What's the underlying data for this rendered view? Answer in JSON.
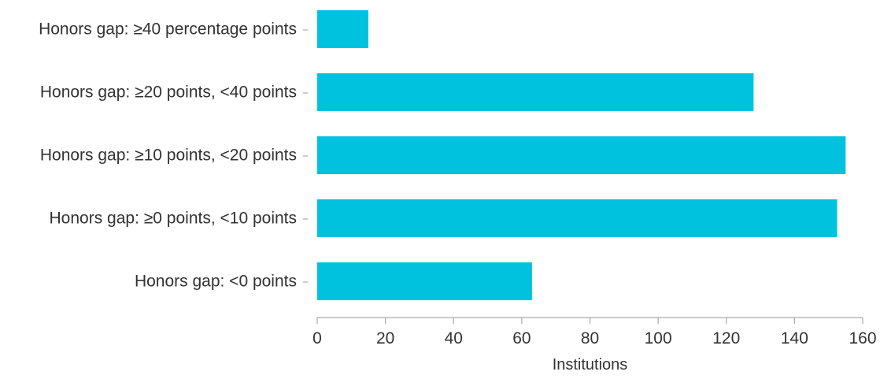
{
  "chart_data": {
    "type": "bar",
    "orientation": "horizontal",
    "categories": [
      "Honors gap: ≥40 percentage points",
      "Honors gap: ≥20 points, <40 points",
      "Honors gap: ≥10 points, <20 points",
      "Honors gap: ≥0 points, <10 points",
      "Honors gap: <0 points"
    ],
    "values": [
      15,
      128,
      155,
      152.5,
      63
    ],
    "xlabel": "Institutions",
    "ylabel": "",
    "title": "",
    "xlim": [
      0,
      160
    ],
    "xticks": [
      "0",
      "20",
      "40",
      "60",
      "80",
      "100",
      "120",
      "140",
      "160"
    ],
    "grid": false,
    "legend": "none",
    "bar_color": "#00c2de",
    "axis_color": "#aaaaaa",
    "text_color": "#333333"
  }
}
